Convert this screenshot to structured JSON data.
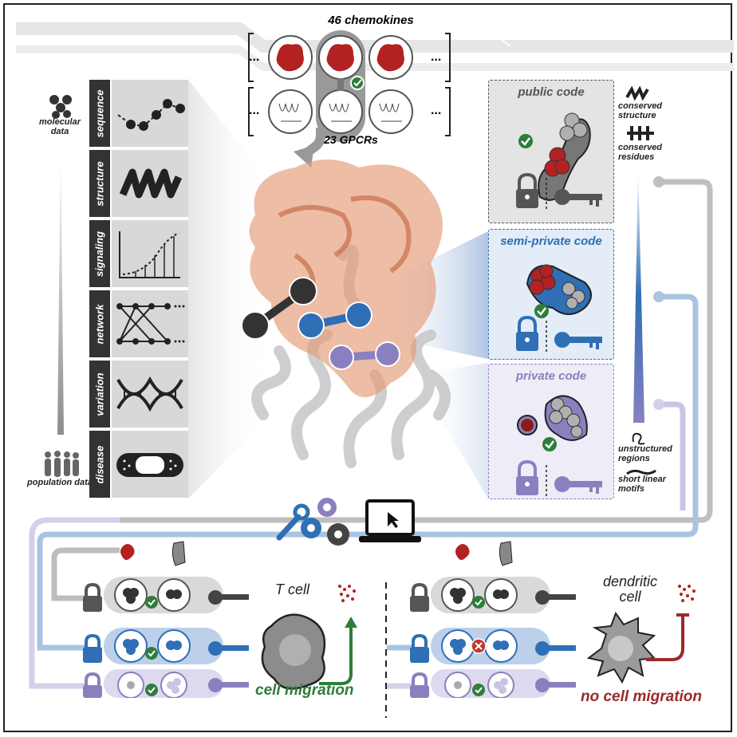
{
  "top": {
    "chemokines_label": "46 chemokines",
    "gpcrs_label": "23 GPCRs",
    "ellipsis": "..."
  },
  "left_axis": {
    "top_label": "molecular data",
    "bottom_label": "population data"
  },
  "data_types": [
    {
      "label": "sequence"
    },
    {
      "label": "structure"
    },
    {
      "label": "signaling"
    },
    {
      "label": "network"
    },
    {
      "label": "variation"
    },
    {
      "label": "disease"
    }
  ],
  "codes": [
    {
      "title": "public code",
      "color": "#555555"
    },
    {
      "title": "semi-private code",
      "color": "#2e6fb5"
    },
    {
      "title": "private code",
      "color": "#8a80c0"
    }
  ],
  "right_legend": {
    "conserved_structure": "conserved structure",
    "conserved_residues": "conserved residues",
    "unstructured_regions": "unstructured regions",
    "short_linear_motifs": "short linear motifs"
  },
  "bottom_left": {
    "cell": "T cell",
    "outcome": "cell migration",
    "outcome_color": "#2e7d3a"
  },
  "bottom_right": {
    "cell": "dendritic cell",
    "outcome": "no cell migration",
    "outcome_color": "#9a2a2a"
  },
  "colors": {
    "dark": "#333333",
    "blue": "#2e6fb5",
    "purple": "#8a80c0",
    "chemokine_red": "#b22222",
    "check_green": "#2e7d3a",
    "cross_red": "#c0392b"
  }
}
